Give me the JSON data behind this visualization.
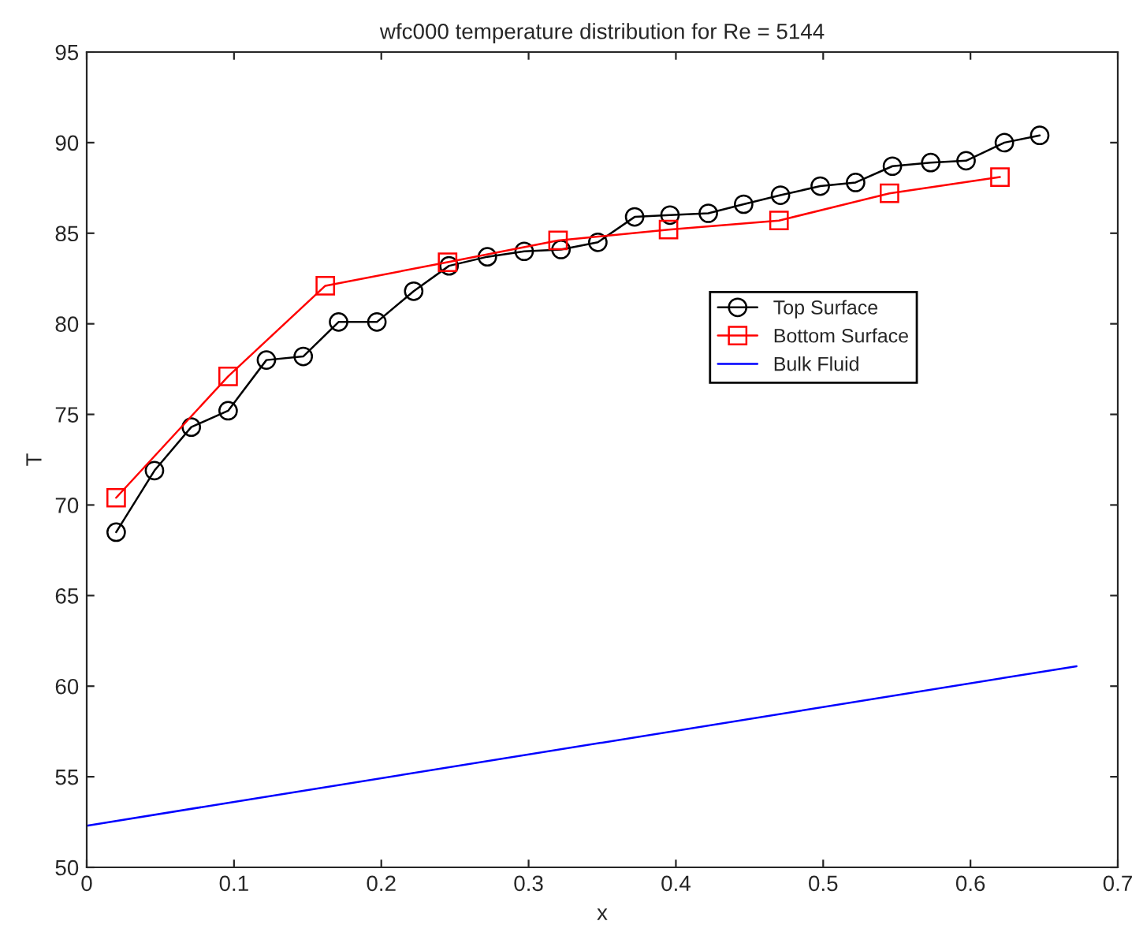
{
  "chart_data": {
    "type": "line",
    "title": "wfc000 temperature distribution for Re = 5144",
    "xlabel": "x",
    "ylabel": "T",
    "xlim": [
      0,
      0.7
    ],
    "xticks": [
      0,
      0.1,
      0.2,
      0.3,
      0.4,
      0.5,
      0.6,
      0.7
    ],
    "ylim": [
      50,
      95
    ],
    "yticks": [
      50,
      55,
      60,
      65,
      70,
      75,
      80,
      85,
      90,
      95
    ],
    "grid": false,
    "legend": "right",
    "series": [
      {
        "name": "Top Surface",
        "color": "#000000",
        "marker": "circle",
        "x": [
          0.02,
          0.046,
          0.071,
          0.096,
          0.122,
          0.147,
          0.171,
          0.197,
          0.222,
          0.246,
          0.272,
          0.297,
          0.322,
          0.347,
          0.372,
          0.396,
          0.422,
          0.446,
          0.471,
          0.498,
          0.522,
          0.547,
          0.573,
          0.597,
          0.623,
          0.647
        ],
        "values": [
          68.5,
          71.9,
          74.3,
          75.2,
          78.0,
          78.2,
          80.1,
          80.1,
          81.8,
          83.2,
          83.7,
          84.0,
          84.1,
          84.5,
          85.9,
          86.0,
          86.1,
          86.6,
          87.1,
          87.6,
          87.8,
          88.7,
          88.9,
          89.0,
          90.0,
          90.4
        ]
      },
      {
        "name": "Bottom Surface",
        "color": "#ff0000",
        "marker": "square",
        "x": [
          0.02,
          0.096,
          0.162,
          0.245,
          0.32,
          0.395,
          0.47,
          0.545,
          0.62
        ],
        "values": [
          70.4,
          77.1,
          82.1,
          83.4,
          84.6,
          85.2,
          85.7,
          87.2,
          88.1
        ]
      },
      {
        "name": "Bulk Fluid",
        "color": "#0000ff",
        "marker": "none",
        "x": [
          0,
          0.672
        ],
        "values": [
          52.3,
          61.1
        ]
      }
    ]
  }
}
